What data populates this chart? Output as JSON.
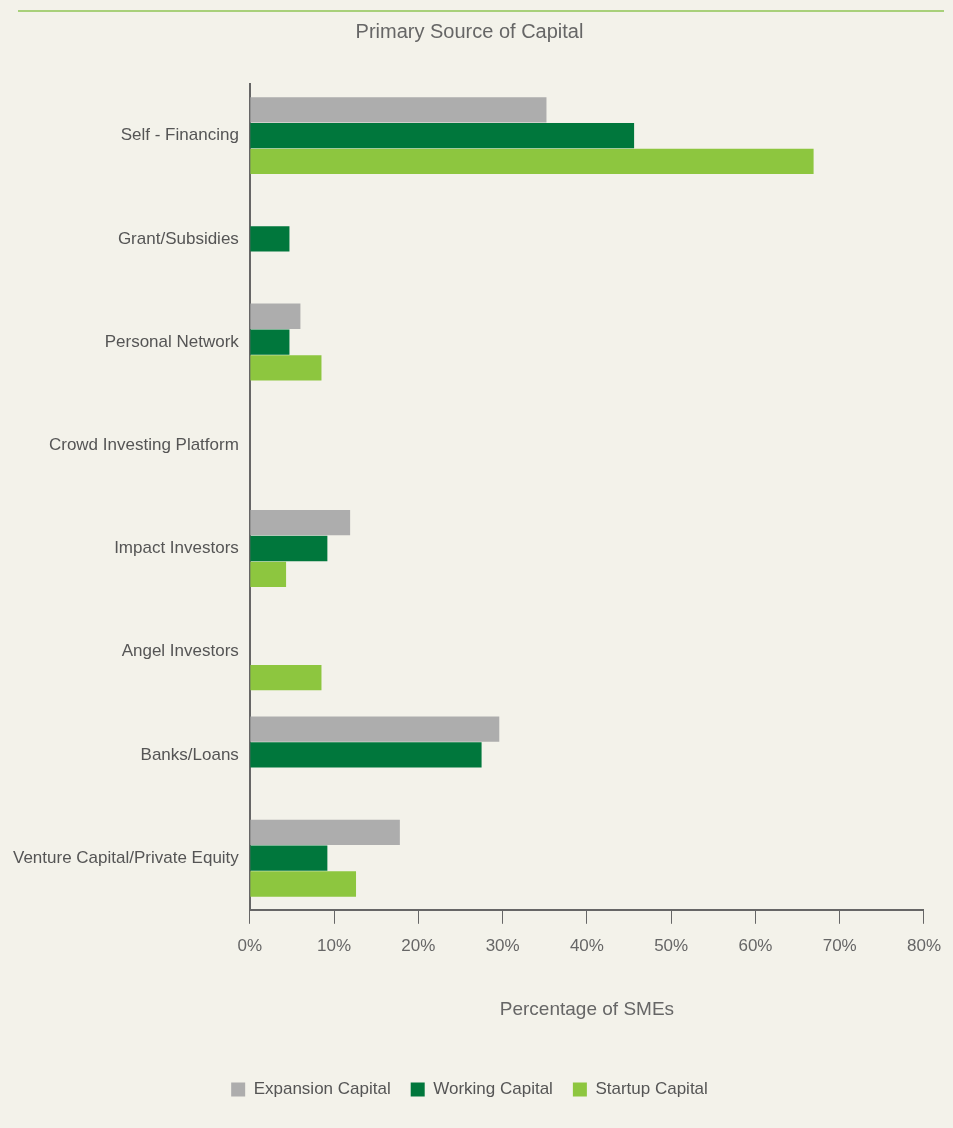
{
  "chart_data": {
    "type": "bar",
    "orientation": "horizontal",
    "title": "Primary Source of Capital",
    "xlabel": "Percentage of SMEs",
    "categories": [
      "Self - Financing",
      "Grant/Subsidies",
      "Personal Network",
      "Crowd Investing Platform",
      "Impact Investors",
      "Angel Investors",
      "Banks/Loans",
      "Venture Capital/Private Equity"
    ],
    "series": [
      {
        "name": "Expansion Capital",
        "color": "#adadad",
        "values": [
          35.2,
          0,
          6.0,
          0,
          11.9,
          0,
          29.6,
          17.8
        ]
      },
      {
        "name": "Working Capital",
        "color": "#00773c",
        "values": [
          45.6,
          4.7,
          4.7,
          0,
          9.2,
          0,
          27.5,
          9.2
        ]
      },
      {
        "name": "Startup Capital",
        "color": "#8dc63f",
        "values": [
          66.9,
          0,
          8.5,
          0,
          4.3,
          8.5,
          0,
          12.6
        ]
      }
    ],
    "xlim": [
      0,
      80
    ],
    "xticks": [
      {
        "value": 0,
        "label": "0%"
      },
      {
        "value": 10,
        "label": "10%"
      },
      {
        "value": 20,
        "label": "20%"
      },
      {
        "value": 30,
        "label": "30%"
      },
      {
        "value": 40,
        "label": "40%"
      },
      {
        "value": 50,
        "label": "50%"
      },
      {
        "value": 60,
        "label": "60%"
      },
      {
        "value": 70,
        "label": "70%"
      },
      {
        "value": 80,
        "label": "80%"
      }
    ],
    "grid": false,
    "legend": "bottom"
  }
}
